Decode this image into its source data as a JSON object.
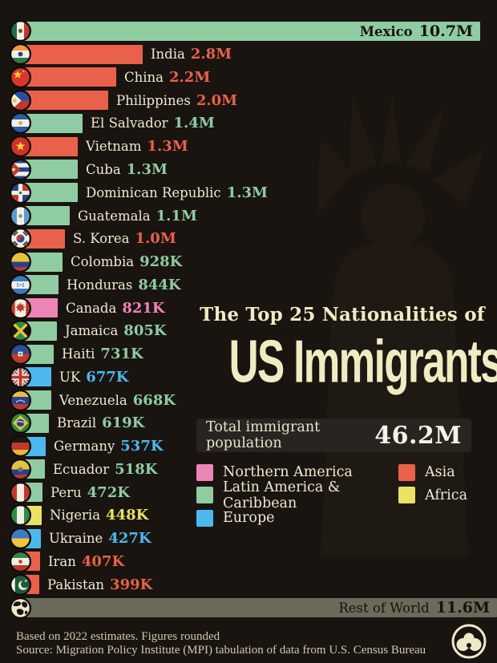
{
  "title": {
    "line1": "The Top 25 Nationalities of",
    "line2": "US Immigrants"
  },
  "total": {
    "label": "Total immigrant population",
    "value": "46.2M"
  },
  "footer": {
    "line1": "Based on 2022 estimates. Figures rounded",
    "line2": "Source: Migration Policy Institute (MPI) tabulation of data from U.S. Census Bureau"
  },
  "colors": {
    "background": "#1A1410",
    "text_cream": "#EFE9D2",
    "title_cream": "#EFEBC2",
    "inside_label_dark": "#17120E",
    "regions": {
      "Northern America": "#EC84B6",
      "Latin America & Caribbean": "#8FCCA2",
      "Europe": "#4CB9EE",
      "Asia": "#E9614A",
      "Africa": "#EAE263",
      "Rest of World": "#6C6A5B"
    }
  },
  "chart_data": {
    "type": "bar",
    "orientation": "horizontal",
    "title": "The Top 25 Nationalities of US Immigrants",
    "total_population": "46.2M",
    "unit": "millions of people",
    "scale_max_millions": 10.7,
    "grid": false,
    "legend_position": "bottom-right",
    "legend": [
      "Northern America",
      "Latin America & Caribbean",
      "Europe",
      "Asia",
      "Africa"
    ],
    "bars": [
      {
        "country": "Mexico",
        "display_value": "10.7M",
        "value_millions": 10.7,
        "region": "Latin America & Caribbean",
        "flag": "mexico-flag",
        "label_inside": true,
        "country_bold": true,
        "full_width": false
      },
      {
        "country": "India",
        "display_value": "2.8M",
        "value_millions": 2.8,
        "region": "Asia",
        "flag": "india-flag",
        "label_inside": false,
        "country_bold": false,
        "full_width": false
      },
      {
        "country": "China",
        "display_value": "2.2M",
        "value_millions": 2.2,
        "region": "Asia",
        "flag": "china-flag",
        "label_inside": false,
        "country_bold": false,
        "full_width": false
      },
      {
        "country": "Philippines",
        "display_value": "2.0M",
        "value_millions": 2.0,
        "region": "Asia",
        "flag": "philippines-flag",
        "label_inside": false,
        "country_bold": false,
        "full_width": false
      },
      {
        "country": "El Salvador",
        "display_value": "1.4M",
        "value_millions": 1.4,
        "region": "Latin America & Caribbean",
        "flag": "el-salvador-flag",
        "label_inside": false,
        "country_bold": false,
        "full_width": false
      },
      {
        "country": "Vietnam",
        "display_value": "1.3M",
        "value_millions": 1.3,
        "region": "Asia",
        "flag": "vietnam-flag",
        "label_inside": false,
        "country_bold": false,
        "full_width": false
      },
      {
        "country": "Cuba",
        "display_value": "1.3M",
        "value_millions": 1.3,
        "region": "Latin America & Caribbean",
        "flag": "cuba-flag",
        "label_inside": false,
        "country_bold": false,
        "full_width": false
      },
      {
        "country": "Dominican Republic",
        "display_value": "1.3M",
        "value_millions": 1.3,
        "region": "Latin America & Caribbean",
        "flag": "dominican-republic-flag",
        "label_inside": false,
        "country_bold": false,
        "full_width": false
      },
      {
        "country": "Guatemala",
        "display_value": "1.1M",
        "value_millions": 1.1,
        "region": "Latin America & Caribbean",
        "flag": "guatemala-flag",
        "label_inside": false,
        "country_bold": false,
        "full_width": false
      },
      {
        "country": "S. Korea",
        "display_value": "1.0M",
        "value_millions": 1.0,
        "region": "Asia",
        "flag": "s-korea-flag",
        "label_inside": false,
        "country_bold": false,
        "full_width": false
      },
      {
        "country": "Colombia",
        "display_value": "928K",
        "value_millions": 0.928,
        "region": "Latin America & Caribbean",
        "flag": "colombia-flag",
        "label_inside": false,
        "country_bold": false,
        "full_width": false
      },
      {
        "country": "Honduras",
        "display_value": "844K",
        "value_millions": 0.844,
        "region": "Latin America & Caribbean",
        "flag": "honduras-flag",
        "label_inside": false,
        "country_bold": false,
        "full_width": false
      },
      {
        "country": "Canada",
        "display_value": "821K",
        "value_millions": 0.821,
        "region": "Northern America",
        "flag": "canada-flag",
        "label_inside": false,
        "country_bold": false,
        "full_width": false
      },
      {
        "country": "Jamaica",
        "display_value": "805K",
        "value_millions": 0.805,
        "region": "Latin America & Caribbean",
        "flag": "jamaica-flag",
        "label_inside": false,
        "country_bold": false,
        "full_width": false
      },
      {
        "country": "Haiti",
        "display_value": "731K",
        "value_millions": 0.731,
        "region": "Latin America & Caribbean",
        "flag": "haiti-flag",
        "label_inside": false,
        "country_bold": false,
        "full_width": false
      },
      {
        "country": "UK",
        "display_value": "677K",
        "value_millions": 0.677,
        "region": "Europe",
        "flag": "uk-flag",
        "label_inside": false,
        "country_bold": false,
        "full_width": false
      },
      {
        "country": "Venezuela",
        "display_value": "668K",
        "value_millions": 0.668,
        "region": "Latin America & Caribbean",
        "flag": "venezuela-flag",
        "label_inside": false,
        "country_bold": false,
        "full_width": false
      },
      {
        "country": "Brazil",
        "display_value": "619K",
        "value_millions": 0.619,
        "region": "Latin America & Caribbean",
        "flag": "brazil-flag",
        "label_inside": false,
        "country_bold": false,
        "full_width": false
      },
      {
        "country": "Germany",
        "display_value": "537K",
        "value_millions": 0.537,
        "region": "Europe",
        "flag": "germany-flag",
        "label_inside": false,
        "country_bold": false,
        "full_width": false
      },
      {
        "country": "Ecuador",
        "display_value": "518K",
        "value_millions": 0.518,
        "region": "Latin America & Caribbean",
        "flag": "ecuador-flag",
        "label_inside": false,
        "country_bold": false,
        "full_width": false
      },
      {
        "country": "Peru",
        "display_value": "472K",
        "value_millions": 0.472,
        "region": "Latin America & Caribbean",
        "flag": "peru-flag",
        "label_inside": false,
        "country_bold": false,
        "full_width": false
      },
      {
        "country": "Nigeria",
        "display_value": "448K",
        "value_millions": 0.448,
        "region": "Africa",
        "flag": "nigeria-flag",
        "label_inside": false,
        "country_bold": false,
        "full_width": false
      },
      {
        "country": "Ukraine",
        "display_value": "427K",
        "value_millions": 0.427,
        "region": "Europe",
        "flag": "ukraine-flag",
        "label_inside": false,
        "country_bold": false,
        "full_width": false
      },
      {
        "country": "Iran",
        "display_value": "407K",
        "value_millions": 0.407,
        "region": "Asia",
        "flag": "iran-flag",
        "label_inside": false,
        "country_bold": false,
        "full_width": false
      },
      {
        "country": "Pakistan",
        "display_value": "399K",
        "value_millions": 0.399,
        "region": "Asia",
        "flag": "pakistan-flag",
        "label_inside": false,
        "country_bold": false,
        "full_width": false
      },
      {
        "country": "Rest of World",
        "display_value": "11.6M",
        "value_millions": 11.6,
        "region": "Rest of World",
        "flag": "globe",
        "label_inside": true,
        "country_bold": false,
        "full_width": true
      }
    ],
    "notes": [
      "Based on 2022 estimates. Figures rounded",
      "Source: Migration Policy Institute (MPI) tabulation of data from U.S. Census Bureau"
    ]
  }
}
